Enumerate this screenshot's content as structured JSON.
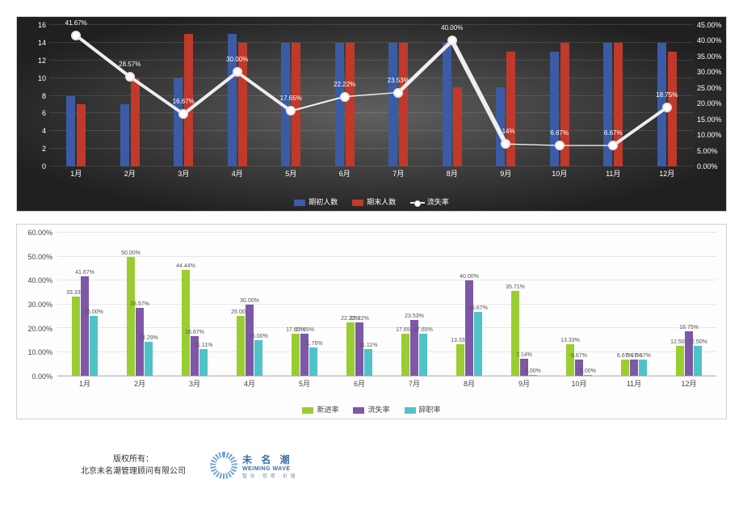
{
  "chart1": {
    "type": "bar+line",
    "categories": [
      "1月",
      "2月",
      "3月",
      "4月",
      "5月",
      "6月",
      "7月",
      "8月",
      "9月",
      "10月",
      "11月",
      "12月"
    ],
    "series_bar": [
      {
        "name": "期初人数",
        "color": "#3b5ba5",
        "values": [
          8,
          7,
          10,
          15,
          14,
          14,
          14,
          14,
          9,
          13,
          14,
          14
        ]
      },
      {
        "name": "期末人数",
        "color": "#c0392b",
        "values": [
          7,
          10,
          15,
          14,
          14,
          14,
          14,
          9,
          13,
          14,
          14,
          13
        ]
      }
    ],
    "series_line": {
      "name": "流失率",
      "color": "#eeeeee",
      "marker": "#ffffff",
      "values": [
        41.67,
        28.57,
        16.67,
        30.0,
        17.65,
        22.22,
        23.53,
        40.0,
        7.14,
        6.67,
        6.67,
        18.75
      ],
      "labels": [
        "41.67%",
        "28.57%",
        "16.67%",
        "30.00%",
        "17.65%",
        "22.22%",
        "23.53%",
        "40.00%",
        "7.14%",
        "6.67%",
        "6.67%",
        "18.75%"
      ]
    },
    "y_left": {
      "min": 0,
      "max": 16,
      "step": 2,
      "fontsize": 9,
      "color": "#ffffff"
    },
    "y_right": {
      "min": 0,
      "max": 45,
      "step": 5,
      "fmt": "pct",
      "fontsize": 9,
      "color": "#ffffff"
    },
    "background": "radial-dark",
    "grid_color": "rgba(255,255,255,0.12)",
    "legend": [
      "期初人数",
      "期末人数",
      "流失率"
    ]
  },
  "chart2": {
    "type": "bar",
    "categories": [
      "1月",
      "2月",
      "3月",
      "4月",
      "5月",
      "6月",
      "7月",
      "8月",
      "9月",
      "10月",
      "11月",
      "12月"
    ],
    "series": [
      {
        "name": "新进率",
        "color": "#9acd32",
        "values": [
          33.33,
          50.0,
          44.44,
          25.0,
          17.65,
          22.22,
          17.65,
          13.33,
          35.71,
          13.33,
          6.67,
          12.5
        ]
      },
      {
        "name": "流失率",
        "color": "#7e57a7",
        "values": [
          41.67,
          28.57,
          16.67,
          30.0,
          17.65,
          22.22,
          23.53,
          40.0,
          7.14,
          6.67,
          6.67,
          18.75
        ]
      },
      {
        "name": "辞职率",
        "color": "#4fc3c7",
        "values": [
          25.0,
          14.29,
          11.11,
          15.0,
          11.76,
          11.11,
          17.65,
          26.67,
          0.0,
          0.0,
          6.67,
          12.5
        ]
      }
    ],
    "y": {
      "min": 0,
      "max": 60,
      "step": 10,
      "fmt": "pct",
      "fontsize": 9,
      "color": "#444"
    },
    "background": "#fdfdfd",
    "grid_color": "#e6e6e6",
    "border": "#d0d0d0",
    "label_fontsize": 7,
    "legend": [
      "新进率",
      "流失率",
      "辞职率"
    ]
  },
  "footer": {
    "copyright_line1": "版权所有：",
    "copyright_line2": "北京未名潮管理顾问有限公司",
    "logo_cn": "未 名 潮",
    "logo_en": "WEIMING WAVE",
    "logo_sub": "智 业 · 信 用 · 价 值"
  }
}
